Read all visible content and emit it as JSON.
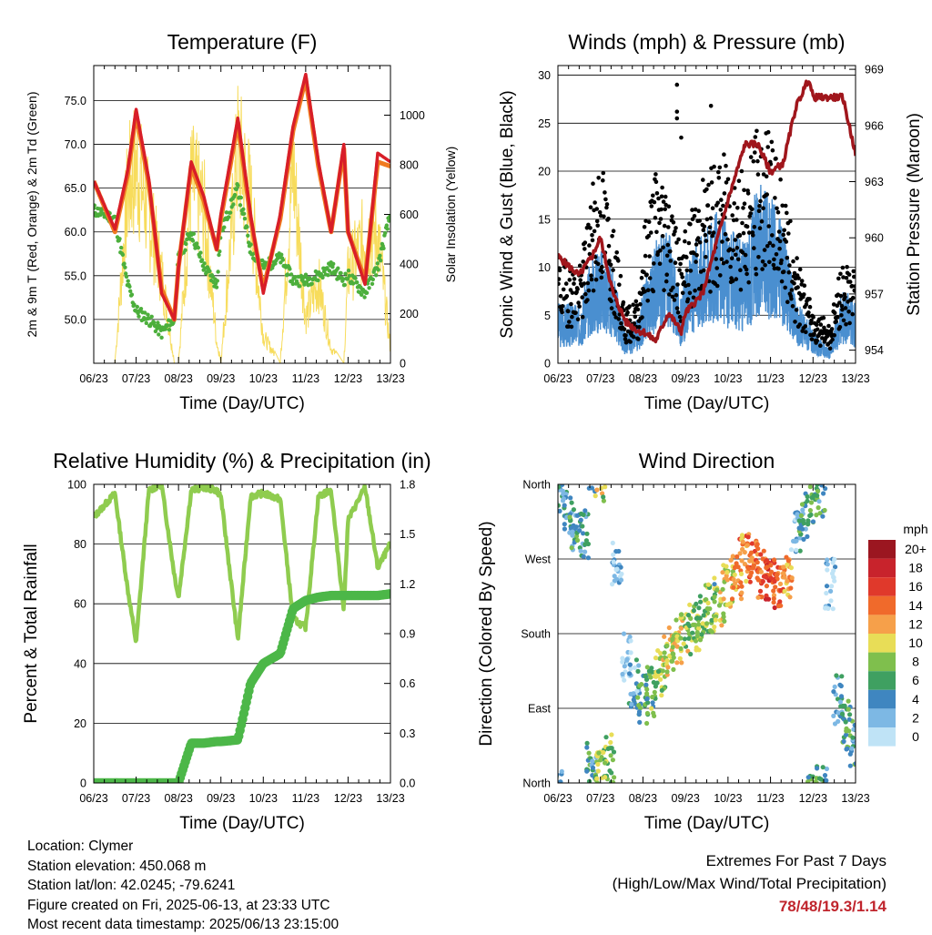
{
  "colors": {
    "temp_2m": "#d81e28",
    "temp_9m": "#f07a20",
    "dewpoint": "#4caf3c",
    "solar": "#f7dc5c",
    "wind": "#4a8fd0",
    "gust": "#000000",
    "pressure": "#a0161c",
    "rh": "#8fcc4f",
    "precip": "#4cb748",
    "extremes": "#c0252d"
  },
  "time_ticks": [
    "06/23",
    "07/23",
    "08/23",
    "09/23",
    "10/23",
    "11/23",
    "12/23",
    "13/23"
  ],
  "panels": {
    "temperature": {
      "title": "Temperature (F)",
      "xlabel": "Time (Day/UTC)",
      "ylabel_left": "2m & 9m T (Red, Orange) & 2m Td (Green)",
      "ylabel_right": "Solar Insolation (Yellow)",
      "left_ticks": [
        "50.0",
        "55.0",
        "60.0",
        "65.0",
        "70.0",
        "75.0"
      ],
      "right_ticks": [
        "0",
        "200",
        "400",
        "600",
        "800",
        "1000"
      ]
    },
    "winds": {
      "title": "Winds (mph) & Pressure (mb)",
      "xlabel": "Time (Day/UTC)",
      "ylabel_left": "Sonic Wind & Gust (Blue, Black)",
      "ylabel_right": "Station Pressure (Maroon)",
      "left_ticks": [
        "0",
        "5",
        "10",
        "15",
        "20",
        "25",
        "30"
      ],
      "right_ticks": [
        "954",
        "957",
        "960",
        "963",
        "966",
        "969"
      ]
    },
    "humidity": {
      "title": "Relative Humidity (%) & Precipitation (in)",
      "xlabel": "Time (Day/UTC)",
      "ylabel_left": "Percent & Total Rainfall",
      "left_ticks": [
        "0",
        "20",
        "40",
        "60",
        "80",
        "100"
      ],
      "right_ticks": [
        "0.0",
        "0.3",
        "0.6",
        "0.9",
        "1.2",
        "1.5",
        "1.8"
      ]
    },
    "direction": {
      "title": "Wind Direction",
      "xlabel": "Time (Day/UTC)",
      "ylabel_left": "Direction (Colored By Speed)",
      "dir_ticks": [
        "North",
        "East",
        "South",
        "West",
        "North"
      ],
      "legend_title": "mph",
      "legend_labels": [
        "20+",
        "18",
        "16",
        "14",
        "12",
        "10",
        "8",
        "6",
        "4",
        "2",
        "0"
      ],
      "legend_colors": [
        "#9b1620",
        "#c8232c",
        "#e0392b",
        "#f06a2b",
        "#f6a04a",
        "#e8dd57",
        "#7fbf4d",
        "#3fa061",
        "#3f86c0",
        "#7db8e4",
        "#bfe3f6"
      ]
    }
  },
  "footer": {
    "location": "Location: Clymer",
    "elevation": "Station elevation: 450.068 m",
    "latlon": "Station lat/lon: 42.0245; -79.6241",
    "created": "Figure created on Fri, 2025-06-13, at 23:33 UTC",
    "recent": "Most recent data timestamp: 2025/06/13 23:15:00",
    "extremes_title": "Extremes For Past 7 Days",
    "extremes_subtitle": "(High/Low/Max Wind/Total Precipitation)",
    "extremes_values": "78/48/19.3/1.14"
  },
  "chart_data": [
    {
      "type": "line",
      "title": "Temperature (F)",
      "xlabel": "Time (Day/UTC)",
      "x": [
        6,
        6.5,
        6.8,
        7,
        7.3,
        7.6,
        7.9,
        8,
        8.3,
        8.6,
        8.9,
        9,
        9.4,
        9.7,
        10,
        10.4,
        10.7,
        11,
        11.3,
        11.6,
        11.9,
        12,
        12.4,
        12.7,
        13
      ],
      "xlim": [
        6,
        13
      ],
      "ylim": [
        45,
        79
      ],
      "y2lim": [
        0,
        1200
      ],
      "series": [
        {
          "values": [
            65.8,
            60.3,
            67,
            74,
            66,
            53,
            50,
            56,
            68,
            64,
            58,
            62,
            73,
            62,
            53,
            62,
            72,
            78,
            68,
            60,
            70,
            60,
            54,
            69,
            68
          ]
        },
        {
          "values": [
            65.8,
            60,
            66.5,
            73.5,
            65.5,
            53.5,
            50,
            56,
            67.5,
            63.5,
            58,
            61.5,
            72.5,
            61.5,
            53.5,
            61.5,
            71.5,
            77.5,
            67.5,
            60,
            69.5,
            60,
            54.5,
            68,
            67.5
          ]
        },
        {
          "values": [
            62.5,
            61.5,
            54,
            51,
            50,
            48.5,
            50,
            57,
            60,
            56,
            54,
            60,
            65,
            58,
            56,
            57,
            54.5,
            54.5,
            55,
            56,
            54.5,
            55,
            53,
            56,
            62
          ]
        },
        {
          "values": [
            0,
            0,
            950,
            1100,
            820,
            500,
            0,
            0,
            1000,
            850,
            120,
            0,
            1170,
            900,
            150,
            0,
            1100,
            250,
            450,
            80,
            0,
            500,
            700,
            720,
            80
          ]
        }
      ]
    },
    {
      "type": "line",
      "title": "Winds (mph) & Pressure (mb)",
      "xlabel": "Time (Day/UTC)",
      "x": [
        6,
        6.5,
        6.8,
        7,
        7.3,
        7.6,
        7.9,
        8,
        8.3,
        8.6,
        8.9,
        9,
        9.4,
        9.7,
        10,
        10.4,
        10.7,
        11,
        11.3,
        11.6,
        11.9,
        12,
        12.4,
        12.7,
        13
      ],
      "xlim": [
        6,
        13
      ],
      "ylim": [
        0,
        31
      ],
      "y2lim": [
        953.3,
        969.2
      ],
      "series": [
        {
          "values": [
            4,
            4,
            7,
            8,
            6,
            2,
            3,
            5,
            8,
            9,
            4,
            6,
            9,
            10,
            9,
            8,
            12,
            11,
            9,
            4,
            3,
            2,
            1,
            5,
            4
          ]
        },
        {
          "values": [
            8,
            7,
            13,
            16,
            10,
            4,
            5,
            10,
            15,
            14,
            8,
            10,
            14,
            15,
            16,
            14,
            18,
            17,
            14,
            8,
            5,
            4,
            3,
            8,
            7
          ]
        },
        {
          "values": [
            959,
            958,
            959,
            960,
            957,
            955.5,
            955,
            955,
            954.5,
            956,
            955,
            956,
            957,
            959.5,
            962,
            965,
            965,
            963.5,
            964,
            967,
            968.5,
            967.5,
            967.5,
            967.5,
            964.5
          ]
        }
      ]
    },
    {
      "type": "line",
      "title": "Relative Humidity (%) & Precipitation (in)",
      "xlabel": "Time (Day/UTC)",
      "x": [
        6,
        6.5,
        6.8,
        7,
        7.3,
        7.6,
        7.9,
        8,
        8.3,
        8.6,
        8.9,
        9,
        9.4,
        9.7,
        10,
        10.4,
        10.7,
        11,
        11.3,
        11.6,
        11.9,
        12,
        12.4,
        12.7,
        13
      ],
      "xlim": [
        6,
        13
      ],
      "ylim": [
        0,
        100
      ],
      "y2lim": [
        0,
        1.8
      ],
      "series": [
        {
          "values": [
            89,
            97,
            65,
            47,
            98,
            100,
            70,
            62,
            98,
            99,
            98,
            96,
            48,
            96,
            97,
            95,
            55,
            52,
            96,
            98,
            58,
            88,
            99,
            72,
            80
          ]
        },
        {
          "values": [
            0,
            0,
            0,
            0,
            0,
            0,
            0,
            0,
            0.24,
            0.24,
            0.25,
            0.25,
            0.26,
            0.6,
            0.72,
            0.78,
            1.05,
            1.1,
            1.12,
            1.13,
            1.13,
            1.13,
            1.13,
            1.13,
            1.14
          ]
        }
      ]
    },
    {
      "type": "scatter",
      "title": "Wind Direction",
      "xlabel": "Time (Day/UTC)",
      "xlim": [
        6,
        13
      ],
      "ylim": [
        0,
        360
      ],
      "x": [
        6,
        6.2,
        6.4,
        6.6,
        6.8,
        7,
        7.2,
        7.4,
        7.6,
        7.8,
        8,
        8.2,
        8.4,
        8.6,
        8.8,
        9,
        9.2,
        9.4,
        9.6,
        9.8,
        10,
        10.2,
        10.4,
        10.6,
        10.8,
        11,
        11.2,
        11.4,
        11.6,
        11.8,
        12,
        12.2,
        12.4,
        12.6,
        12.8,
        13
      ],
      "y": [
        350,
        330,
        310,
        300,
        20,
        10,
        30,
        260,
        150,
        120,
        100,
        110,
        130,
        160,
        170,
        180,
        190,
        200,
        210,
        220,
        240,
        250,
        270,
        270,
        250,
        240,
        230,
        250,
        300,
        320,
        340,
        350,
        240,
        100,
        70,
        40
      ],
      "speed": [
        3,
        4,
        5,
        4,
        5,
        9,
        8,
        2,
        1,
        3,
        6,
        7,
        8,
        9,
        10,
        9,
        8,
        8,
        7,
        9,
        10,
        12,
        13,
        14,
        15,
        16,
        14,
        12,
        3,
        5,
        6,
        5,
        2,
        4,
        6,
        5
      ]
    }
  ]
}
